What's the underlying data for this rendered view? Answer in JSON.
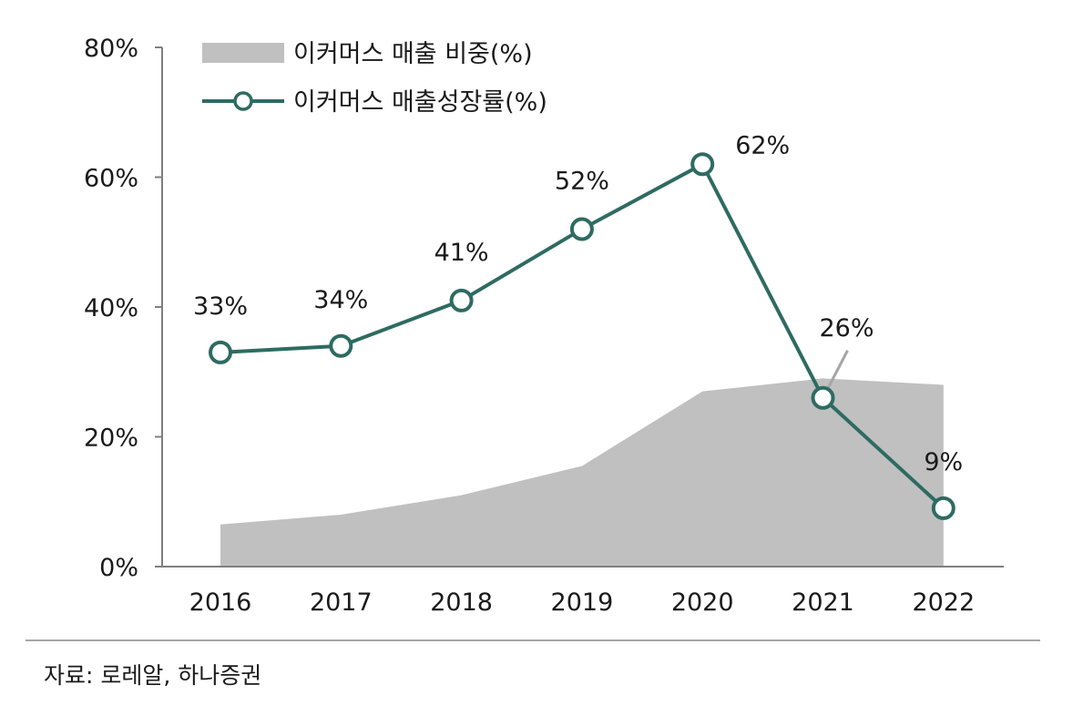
{
  "chart_data": {
    "type": "line",
    "categories": [
      "2016",
      "2017",
      "2018",
      "2019",
      "2020",
      "2021",
      "2022"
    ],
    "ylim": [
      0,
      80
    ],
    "yticks": [
      0,
      20,
      40,
      60,
      80
    ],
    "ytick_labels": [
      "0%",
      "20%",
      "40%",
      "60%",
      "80%"
    ],
    "grid": false,
    "legend_position": "top-left",
    "series": [
      {
        "name": "이커머스  매출 비중(%)",
        "kind": "area",
        "color": "#c0c0c0",
        "values": [
          6.5,
          8,
          11,
          15.5,
          27,
          29,
          28
        ]
      },
      {
        "name": "이커머스  매출성장률(%)",
        "kind": "line",
        "color": "#2e6b62",
        "values": [
          33,
          34,
          41,
          52,
          62,
          26,
          9
        ],
        "data_labels": [
          "33%",
          "34%",
          "41%",
          "52%",
          "62%",
          "26%",
          "9%"
        ]
      }
    ]
  },
  "source_note": "자료: 로레알, 하나증권"
}
